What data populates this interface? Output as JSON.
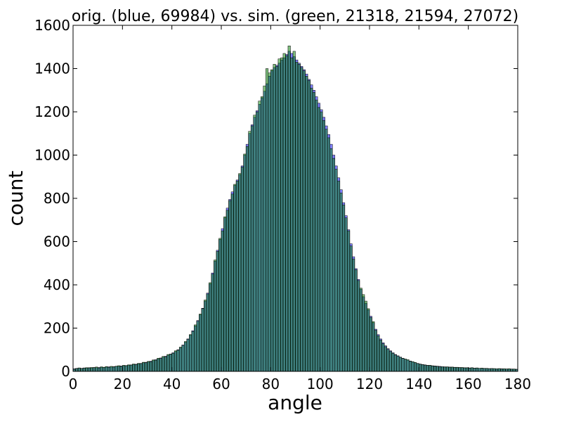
{
  "chart_data": {
    "type": "histogram",
    "title": "orig. (blue, 69984) vs. sim. (green, 21318, 21594, 27072)",
    "x_label": "angle",
    "y_label": "count",
    "bins": [
      0,
      1,
      2,
      3,
      4,
      5,
      6,
      7,
      8,
      9,
      10,
      11,
      12,
      13,
      14,
      15,
      16,
      17,
      18,
      19,
      20,
      21,
      22,
      23,
      24,
      25,
      26,
      27,
      28,
      29,
      30,
      31,
      32,
      33,
      34,
      35,
      36,
      37,
      38,
      39,
      40,
      41,
      42,
      43,
      44,
      45,
      46,
      47,
      48,
      49,
      50,
      51,
      52,
      53,
      54,
      55,
      56,
      57,
      58,
      59,
      60,
      61,
      62,
      63,
      64,
      65,
      66,
      67,
      68,
      69,
      70,
      71,
      72,
      73,
      74,
      75,
      76,
      77,
      78,
      79,
      80,
      81,
      82,
      83,
      84,
      85,
      86,
      87,
      88,
      89,
      90,
      91,
      92,
      93,
      94,
      95,
      96,
      97,
      98,
      99,
      100,
      101,
      102,
      103,
      104,
      105,
      106,
      107,
      108,
      109,
      110,
      111,
      112,
      113,
      114,
      115,
      116,
      117,
      118,
      119,
      120,
      121,
      122,
      123,
      124,
      125,
      126,
      127,
      128,
      129,
      130,
      131,
      132,
      133,
      134,
      135,
      136,
      137,
      138,
      139,
      140,
      141,
      142,
      143,
      144,
      145,
      146,
      147,
      148,
      149,
      150,
      151,
      152,
      153,
      154,
      155,
      156,
      157,
      158,
      159,
      160,
      161,
      162,
      163,
      164,
      165,
      166,
      167,
      168,
      169,
      170,
      171,
      172,
      173,
      174,
      175,
      176,
      177,
      178,
      179,
      180
    ],
    "series": [
      {
        "color": "#0000ff",
        "values": [
          12,
          14,
          15,
          14,
          16,
          15,
          17,
          16,
          18,
          17,
          18,
          19,
          18,
          20,
          21,
          20,
          22,
          23,
          24,
          25,
          26,
          27,
          28,
          30,
          32,
          33,
          35,
          37,
          40,
          42,
          44,
          47,
          50,
          54,
          58,
          62,
          66,
          70,
          75,
          80,
          86,
          92,
          100,
          110,
          122,
          135,
          150,
          168,
          188,
          210,
          235,
          262,
          292,
          325,
          362,
          405,
          455,
          510,
          560,
          610,
          660,
          710,
          755,
          795,
          830,
          860,
          885,
          910,
          950,
          1000,
          1050,
          1100,
          1140,
          1175,
          1205,
          1235,
          1265,
          1295,
          1330,
          1365,
          1390,
          1405,
          1415,
          1425,
          1440,
          1450,
          1465,
          1480,
          1470,
          1455,
          1440,
          1425,
          1410,
          1395,
          1375,
          1350,
          1325,
          1300,
          1270,
          1240,
          1210,
          1175,
          1135,
          1095,
          1050,
          1000,
          950,
          895,
          840,
          780,
          720,
          655,
          590,
          530,
          475,
          425,
          380,
          345,
          315,
          285,
          255,
          225,
          195,
          170,
          150,
          132,
          118,
          105,
          95,
          86,
          78,
          72,
          66,
          61,
          56,
          52,
          48,
          44,
          40,
          37,
          34,
          32,
          30,
          28,
          27,
          26,
          25,
          24,
          23,
          22,
          21,
          20,
          20,
          19,
          19,
          18,
          18,
          17,
          17,
          16,
          16,
          16,
          15,
          15,
          14,
          14,
          14,
          13,
          13,
          13,
          12,
          12,
          12,
          12,
          11,
          11,
          11,
          11,
          10,
          10
        ]
      },
      {
        "color": "#008000",
        "values": [
          10,
          13,
          16,
          13,
          15,
          17,
          16,
          18,
          17,
          20,
          16,
          21,
          19,
          22,
          19,
          23,
          21,
          24,
          26,
          23,
          28,
          26,
          30,
          29,
          34,
          31,
          37,
          36,
          42,
          40,
          46,
          45,
          53,
          52,
          61,
          60,
          69,
          68,
          78,
          79,
          84,
          95,
          98,
          112,
          120,
          138,
          148,
          170,
          185,
          215,
          232,
          265,
          290,
          330,
          358,
          410,
          450,
          515,
          555,
          615,
          650,
          715,
          745,
          790,
          820,
          865,
          880,
          915,
          945,
          1005,
          1040,
          1110,
          1135,
          1185,
          1200,
          1250,
          1270,
          1320,
          1400,
          1380,
          1395,
          1420,
          1410,
          1445,
          1450,
          1470,
          1460,
          1505,
          1450,
          1480,
          1430,
          1420,
          1405,
          1390,
          1365,
          1345,
          1310,
          1290,
          1255,
          1220,
          1200,
          1160,
          1120,
          1080,
          1030,
          985,
          935,
          880,
          825,
          770,
          710,
          650,
          580,
          520,
          470,
          420,
          385,
          355,
          325,
          290,
          250,
          230,
          190,
          165,
          145,
          128,
          114,
          102,
          92,
          84,
          76,
          70,
          65,
          60,
          57,
          54,
          47,
          45,
          41,
          36,
          33,
          31,
          29,
          27,
          28,
          25,
          24,
          23,
          21,
          22,
          20,
          21,
          19,
          20,
          18,
          19,
          17,
          18,
          16,
          17,
          15,
          17,
          14,
          16,
          14,
          15,
          13,
          14,
          12,
          13,
          13,
          12,
          13,
          11,
          12,
          11,
          12,
          10,
          11,
          9
        ]
      }
    ],
    "xlim": [
      0,
      180
    ],
    "ylim": [
      0,
      1600
    ],
    "xticks": [
      0,
      20,
      40,
      60,
      80,
      100,
      120,
      140,
      160,
      180
    ],
    "yticks": [
      0,
      200,
      400,
      600,
      800,
      1000,
      1200,
      1400,
      1600
    ]
  }
}
